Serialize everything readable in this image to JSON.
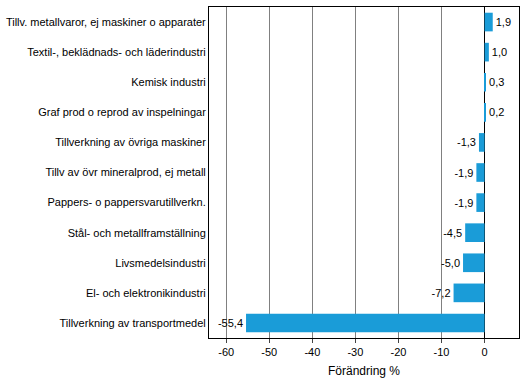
{
  "chart_data": {
    "type": "bar",
    "orientation": "horizontal",
    "categories": [
      "Tillv. metallvaror, ej maskiner o apparater",
      "Textil-, beklädnads- och läderindustri",
      "Kemisk industri",
      "Graf prod o reprod av inspelningar",
      "Tillverkning av övriga maskiner",
      "Tillv av övr mineralprod, ej metall",
      "Pappers- o pappersvarutillverkn.",
      "Stål- och metallframställning",
      "Livsmedelsindustri",
      "El- och elektronikindustri",
      "Tillverkning av transportmedel"
    ],
    "values": [
      1.9,
      1.0,
      0.3,
      0.2,
      -1.3,
      -1.9,
      -1.9,
      -4.5,
      -5.0,
      -7.2,
      -55.4
    ],
    "value_labels": [
      "1,9",
      "1,0",
      "0,3",
      "0,2",
      "-1,3",
      "-1,9",
      "-1,9",
      "-4,5",
      "-5,0",
      "-7,2",
      "-55,4"
    ],
    "data_labels": true,
    "color": "#1a9cd8",
    "x_label": "Förändring %",
    "xlim": [
      -64,
      8
    ],
    "xticks": [
      -60,
      -50,
      -40,
      -30,
      -20,
      -10,
      0
    ],
    "grid": true
  }
}
